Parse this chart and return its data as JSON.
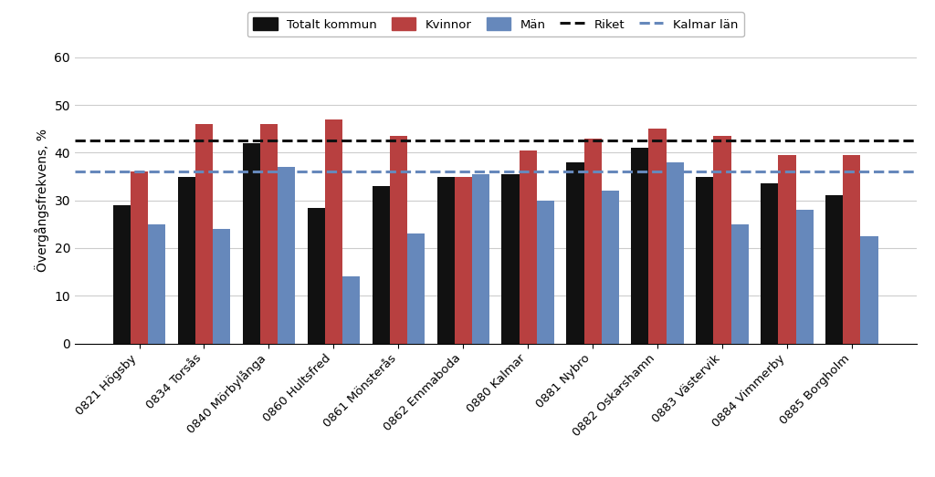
{
  "categories": [
    "0821 Högsby",
    "0834 Torsås",
    "0840 Mörbylånga",
    "0860 Hultsfred",
    "0861 Mönsterås",
    "0862 Emmaboda",
    "0880 Kalmar",
    "0881 Nybro",
    "0882 Oskarshamn",
    "0883 Västervik",
    "0884 Vimmerby",
    "0885 Borgholm"
  ],
  "totalt": [
    29,
    35,
    42,
    28.5,
    33,
    35,
    35.5,
    38,
    41,
    35,
    33.5,
    31
  ],
  "kvinnor": [
    36,
    46,
    46,
    47,
    43.5,
    35,
    40.5,
    43,
    45,
    43.5,
    39.5,
    39.5
  ],
  "man": [
    25,
    24,
    37,
    14,
    23,
    35.5,
    30,
    32,
    38,
    25,
    28,
    22.5
  ],
  "riket": 42.5,
  "kalmar_lan": 36,
  "ylabel": "Övergångsfrekvens, %",
  "ylim": [
    0,
    60
  ],
  "yticks": [
    0,
    10,
    20,
    30,
    40,
    50,
    60
  ],
  "bar_color_totalt": "#111111",
  "bar_color_kvinnor": "#b84040",
  "bar_color_man": "#6688bb",
  "riket_color": "#111111",
  "kalmar_color": "#6688bb",
  "legend_labels": [
    "Totalt kommun",
    "Kvinnor",
    "Män",
    "Riket",
    "Kalmar län"
  ],
  "bar_width": 0.27
}
